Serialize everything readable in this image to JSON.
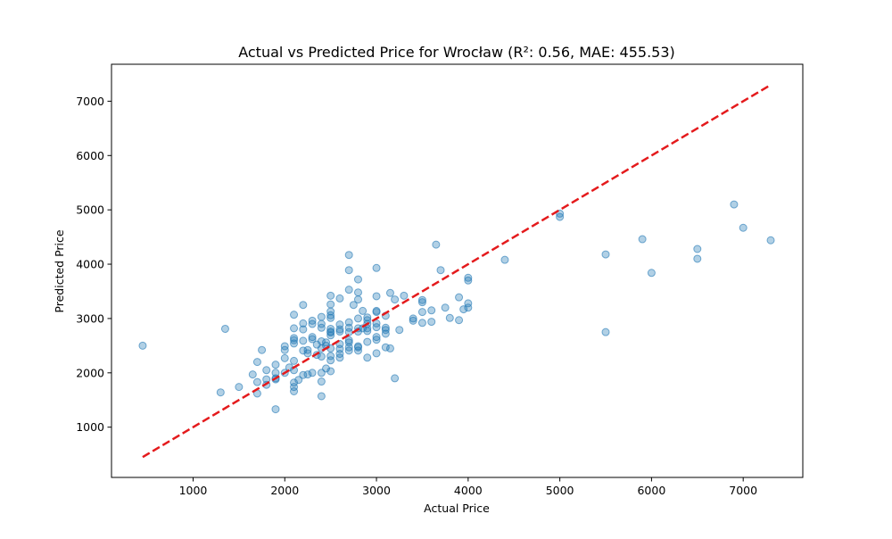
{
  "chart_data": {
    "type": "scatter",
    "title": "Actual vs Predicted Price for Wrocław (R²: 0.56, MAE: 455.53)",
    "xlabel": "Actual Price",
    "ylabel": "Predicted Price",
    "xlim": [
      110,
      7650
    ],
    "ylim": [
      75,
      7680
    ],
    "xticks": [
      1000,
      2000,
      3000,
      4000,
      5000,
      6000,
      7000
    ],
    "yticks": [
      1000,
      2000,
      3000,
      4000,
      5000,
      6000,
      7000
    ],
    "grid": false,
    "point_color": "#1f77b4",
    "point_alpha": 0.35,
    "reference_line": {
      "from": [
        450,
        450
      ],
      "to": [
        7300,
        7300
      ],
      "color": "#e41a1c",
      "style": "dashed"
    },
    "points": [
      [
        450,
        2500
      ],
      [
        1300,
        1640
      ],
      [
        1350,
        2810
      ],
      [
        1500,
        1740
      ],
      [
        1650,
        1970
      ],
      [
        1700,
        1620
      ],
      [
        1700,
        1830
      ],
      [
        1700,
        2200
      ],
      [
        1750,
        2420
      ],
      [
        1800,
        2050
      ],
      [
        1800,
        1780
      ],
      [
        1800,
        1880
      ],
      [
        1900,
        1330
      ],
      [
        1900,
        1880
      ],
      [
        1900,
        1900
      ],
      [
        1900,
        2000
      ],
      [
        1900,
        2150
      ],
      [
        2000,
        2000
      ],
      [
        2000,
        2270
      ],
      [
        2000,
        2420
      ],
      [
        2000,
        2490
      ],
      [
        2050,
        2100
      ],
      [
        2100,
        1660
      ],
      [
        2100,
        1740
      ],
      [
        2100,
        1820
      ],
      [
        2100,
        2050
      ],
      [
        2100,
        2220
      ],
      [
        2100,
        2540
      ],
      [
        2100,
        2600
      ],
      [
        2100,
        2640
      ],
      [
        2100,
        2820
      ],
      [
        2100,
        3070
      ],
      [
        2150,
        1870
      ],
      [
        2200,
        1960
      ],
      [
        2200,
        2410
      ],
      [
        2200,
        2590
      ],
      [
        2200,
        2800
      ],
      [
        2200,
        2910
      ],
      [
        2200,
        3250
      ],
      [
        2250,
        1970
      ],
      [
        2250,
        2360
      ],
      [
        2250,
        2420
      ],
      [
        2300,
        2000
      ],
      [
        2300,
        2620
      ],
      [
        2300,
        2660
      ],
      [
        2300,
        2900
      ],
      [
        2300,
        2960
      ],
      [
        2350,
        2330
      ],
      [
        2350,
        2520
      ],
      [
        2400,
        1570
      ],
      [
        2400,
        1840
      ],
      [
        2400,
        2000
      ],
      [
        2400,
        2300
      ],
      [
        2400,
        2450
      ],
      [
        2400,
        2580
      ],
      [
        2400,
        2830
      ],
      [
        2400,
        2900
      ],
      [
        2400,
        3030
      ],
      [
        2450,
        2080
      ],
      [
        2450,
        2500
      ],
      [
        2450,
        2560
      ],
      [
        2500,
        2030
      ],
      [
        2500,
        2230
      ],
      [
        2500,
        2310
      ],
      [
        2500,
        2450
      ],
      [
        2500,
        2690
      ],
      [
        2500,
        2740
      ],
      [
        2500,
        2760
      ],
      [
        2500,
        2810
      ],
      [
        2500,
        3010
      ],
      [
        2500,
        3060
      ],
      [
        2500,
        3130
      ],
      [
        2500,
        3260
      ],
      [
        2500,
        3420
      ],
      [
        2600,
        2280
      ],
      [
        2600,
        2350
      ],
      [
        2600,
        2440
      ],
      [
        2600,
        2530
      ],
      [
        2600,
        2760
      ],
      [
        2600,
        2800
      ],
      [
        2600,
        2890
      ],
      [
        2600,
        3370
      ],
      [
        2700,
        2410
      ],
      [
        2700,
        2470
      ],
      [
        2700,
        2560
      ],
      [
        2700,
        2600
      ],
      [
        2700,
        2750
      ],
      [
        2700,
        2830
      ],
      [
        2700,
        2930
      ],
      [
        2700,
        3530
      ],
      [
        2700,
        3890
      ],
      [
        2700,
        4170
      ],
      [
        2750,
        3250
      ],
      [
        2800,
        2410
      ],
      [
        2800,
        2470
      ],
      [
        2800,
        2490
      ],
      [
        2800,
        2760
      ],
      [
        2800,
        2820
      ],
      [
        2800,
        3000
      ],
      [
        2800,
        3350
      ],
      [
        2800,
        3480
      ],
      [
        2800,
        3720
      ],
      [
        2850,
        2820
      ],
      [
        2850,
        3140
      ],
      [
        2900,
        2280
      ],
      [
        2900,
        2570
      ],
      [
        2900,
        2770
      ],
      [
        2900,
        2820
      ],
      [
        2900,
        2900
      ],
      [
        2900,
        2970
      ],
      [
        2900,
        3020
      ],
      [
        3000,
        2360
      ],
      [
        3000,
        2610
      ],
      [
        3000,
        2660
      ],
      [
        3000,
        2840
      ],
      [
        3000,
        2910
      ],
      [
        3000,
        3120
      ],
      [
        3000,
        3140
      ],
      [
        3000,
        3410
      ],
      [
        3000,
        3930
      ],
      [
        3100,
        2470
      ],
      [
        3100,
        2720
      ],
      [
        3100,
        2790
      ],
      [
        3100,
        2830
      ],
      [
        3100,
        3050
      ],
      [
        3150,
        2450
      ],
      [
        3150,
        3470
      ],
      [
        3200,
        1900
      ],
      [
        3200,
        3350
      ],
      [
        3250,
        2790
      ],
      [
        3300,
        3420
      ],
      [
        3400,
        2960
      ],
      [
        3400,
        3000
      ],
      [
        3500,
        2920
      ],
      [
        3500,
        3120
      ],
      [
        3500,
        3300
      ],
      [
        3500,
        3340
      ],
      [
        3600,
        2940
      ],
      [
        3600,
        3150
      ],
      [
        3650,
        4360
      ],
      [
        3700,
        3890
      ],
      [
        3750,
        3200
      ],
      [
        3800,
        3010
      ],
      [
        3900,
        2970
      ],
      [
        3900,
        3390
      ],
      [
        3950,
        3170
      ],
      [
        4000,
        3200
      ],
      [
        4000,
        3280
      ],
      [
        4000,
        3700
      ],
      [
        4000,
        3750
      ],
      [
        4400,
        4080
      ],
      [
        5000,
        4870
      ],
      [
        5000,
        4930
      ],
      [
        5500,
        2750
      ],
      [
        5500,
        4180
      ],
      [
        5900,
        4460
      ],
      [
        6000,
        3840
      ],
      [
        6500,
        4100
      ],
      [
        6500,
        4280
      ],
      [
        6900,
        5100
      ],
      [
        7000,
        4670
      ],
      [
        7300,
        4440
      ]
    ]
  }
}
